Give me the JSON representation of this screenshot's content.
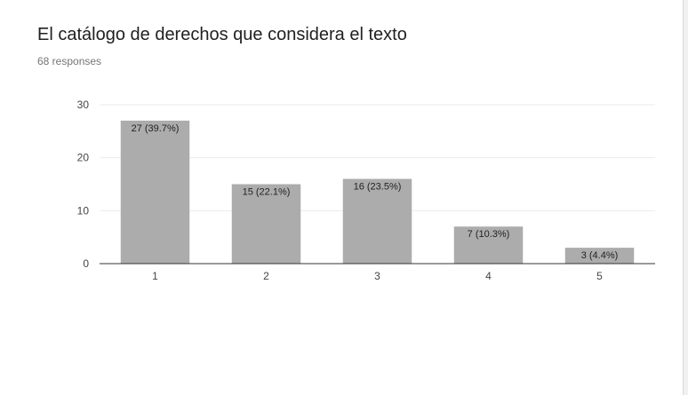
{
  "header": {
    "title": "El catálogo de derechos que considera el texto",
    "responses": "68 responses"
  },
  "chart_data": {
    "type": "bar",
    "categories": [
      "1",
      "2",
      "3",
      "4",
      "5"
    ],
    "values": [
      27,
      15,
      16,
      7,
      3
    ],
    "data_labels": [
      "27 (39.7%)",
      "15 (22.1%)",
      "16 (23.5%)",
      "7 (10.3%)",
      "3 (4.4%)"
    ],
    "ylim": [
      0,
      30
    ],
    "yticks": [
      0,
      10,
      20,
      30
    ],
    "grid": true,
    "legend": "none",
    "bar_color": "#acacac",
    "grid_color": "#ebebeb",
    "axis_color": "#333333"
  }
}
